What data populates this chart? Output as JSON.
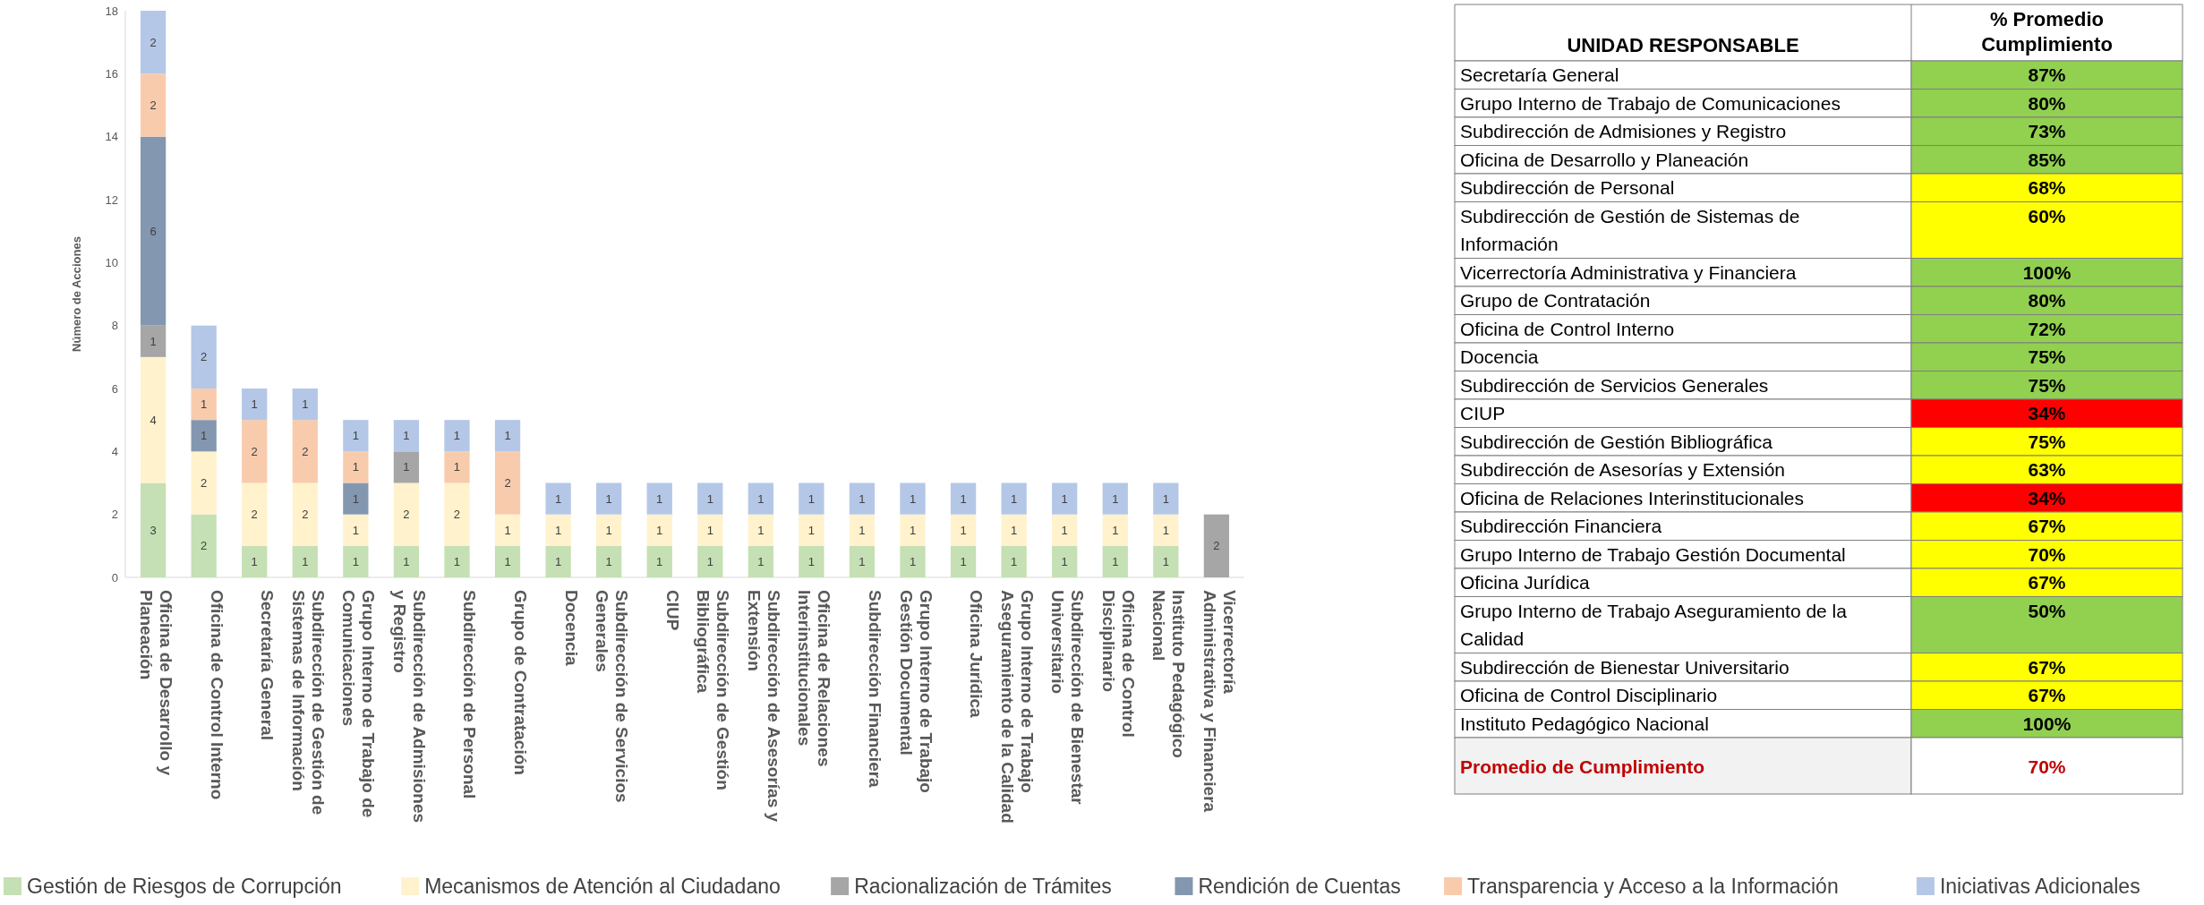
{
  "chart_data": [
    {
      "type": "bar",
      "stacked": true,
      "ylabel": "Número de Acciones",
      "ylim": [
        0,
        18
      ],
      "yticks": [
        0,
        2,
        4,
        6,
        8,
        10,
        12,
        14,
        16,
        18
      ],
      "data_labels": true,
      "legend": "bottom",
      "categories": [
        "Oficina de Desarrollo y Planeación",
        "Oficina de Control Interno",
        "Secretaría General",
        "Subdirección de Gestión de Sistemas de Información",
        "Grupo Interno de Trabajo de Comunicaciones",
        "Subdirección de Admisiones y Registro",
        "Subdirección de Personal",
        "Grupo de Contratación",
        "Docencia",
        "Subdirección de Servicios Generales",
        "CIUP",
        "Subdirección de Gestión Bibliográfica",
        "Subdirección de Asesorías y Extensión",
        "Oficina de Relaciones Interinstitucionales",
        "Subdirección Financiera",
        "Grupo Interno de Trabajo Gestión Documental",
        "Oficina Jurídica",
        "Grupo Interno de Trabajo Aseguramiento de la Calidad",
        "Subdirección de Bienestar Universitario",
        "Oficina de Control Disciplinario",
        "Instituto Pedagógico Nacional",
        "Vicerrectoría Administrativa y Financiera"
      ],
      "series": [
        {
          "name": "Gestión de Riesgos de Corrupción",
          "color": "#c5e0b4",
          "values": [
            3,
            2,
            1,
            1,
            1,
            1,
            1,
            1,
            1,
            1,
            1,
            1,
            1,
            1,
            1,
            1,
            1,
            1,
            1,
            1,
            1,
            null
          ]
        },
        {
          "name": "Mecanismos de Atención al Ciudadano",
          "color": "#fff2cc",
          "values": [
            4,
            2,
            2,
            2,
            1,
            2,
            2,
            1,
            1,
            1,
            1,
            1,
            1,
            1,
            1,
            1,
            1,
            1,
            1,
            1,
            1,
            null
          ]
        },
        {
          "name": "Racionalización de Trámites",
          "color": "#a6a6a6",
          "values": [
            1,
            null,
            null,
            null,
            null,
            1,
            null,
            null,
            null,
            null,
            null,
            null,
            null,
            null,
            null,
            null,
            null,
            null,
            null,
            null,
            null,
            2
          ]
        },
        {
          "name": "Rendición de Cuentas",
          "color": "#8497b0",
          "values": [
            6,
            1,
            null,
            null,
            1,
            null,
            null,
            null,
            null,
            null,
            null,
            null,
            null,
            null,
            null,
            null,
            null,
            null,
            null,
            null,
            null,
            null
          ]
        },
        {
          "name": "Transparencia y Acceso a la Información",
          "color": "#f8cbad",
          "values": [
            2,
            1,
            2,
            2,
            1,
            null,
            1,
            2,
            null,
            null,
            null,
            null,
            null,
            null,
            null,
            null,
            null,
            null,
            null,
            null,
            null,
            null
          ]
        },
        {
          "name": "Iniciativas Adicionales",
          "color": "#b4c7e7",
          "values": [
            2,
            2,
            1,
            1,
            1,
            1,
            1,
            1,
            1,
            1,
            1,
            1,
            1,
            1,
            1,
            1,
            1,
            1,
            1,
            1,
            1,
            null
          ]
        }
      ]
    },
    {
      "type": "heatmap",
      "ylabel": "UNIDAD RESPONSABLE",
      "categories": [
        "% Promedio Cumplimiento"
      ],
      "y_categories": [
        "Secretaría General",
        "Grupo Interno de Trabajo de Comunicaciones",
        "Subdirección de Admisiones y Registro",
        "Oficina de Desarrollo y Planeación",
        "Subdirección de Personal",
        "Subdirección de Gestión de Sistemas de Información",
        "Vicerrectoría Administrativa y Financiera",
        "Grupo de Contratación",
        "Oficina de Control Interno",
        "Docencia",
        "Subdirección de Servicios Generales",
        "CIUP",
        "Subdirección de Gestión Bibliográfica",
        "Subdirección de Asesorías y Extensión",
        "Oficina de Relaciones Interinstitucionales",
        "Subdirección Financiera",
        "Grupo Interno de Trabajo Gestión Documental",
        "Oficina Jurídica",
        "Grupo Interno de Trabajo Aseguramiento de la Calidad",
        "Subdirección de Bienestar Universitario",
        "Oficina de Control Disciplinario",
        "Instituto Pedagógico Nacional",
        "Promedio de Cumplimiento"
      ],
      "cells": [
        [
          87
        ],
        [
          80
        ],
        [
          73
        ],
        [
          85
        ],
        [
          68
        ],
        [
          60
        ],
        [
          100
        ],
        [
          80
        ],
        [
          72
        ],
        [
          75
        ],
        [
          75
        ],
        [
          34
        ],
        [
          75
        ],
        [
          63
        ],
        [
          34
        ],
        [
          67
        ],
        [
          70
        ],
        [
          67
        ],
        [
          50
        ],
        [
          67
        ],
        [
          67
        ],
        [
          100
        ],
        [
          70
        ]
      ],
      "cell_labels": [
        [
          "87%"
        ],
        [
          "80%"
        ],
        [
          "73%"
        ],
        [
          "85%"
        ],
        [
          "68%"
        ],
        [
          "60%"
        ],
        [
          "100%"
        ],
        [
          "80%"
        ],
        [
          "72%"
        ],
        [
          "75%"
        ],
        [
          "75%"
        ],
        [
          "34%"
        ],
        [
          "75%"
        ],
        [
          "63%"
        ],
        [
          "34%"
        ],
        [
          "67%"
        ],
        [
          "70%"
        ],
        [
          "67%"
        ],
        [
          "50%"
        ],
        [
          "67%"
        ],
        [
          "67%"
        ],
        [
          "100%"
        ],
        [
          "70%"
        ]
      ],
      "colors": [
        "#92d050",
        "#92d050",
        "#92d050",
        "#92d050",
        "#ffff00",
        "#ffff00",
        "#92d050",
        "#92d050",
        "#92d050",
        "#92d050",
        "#92d050",
        "#ff0000",
        "#ffff00",
        "#ffff00",
        "#ff0000",
        "#ffff00",
        "#ffff00",
        "#ffff00",
        "#92d050",
        "#ffff00",
        "#ffff00",
        "#92d050",
        "#ffffff"
      ]
    }
  ]
}
